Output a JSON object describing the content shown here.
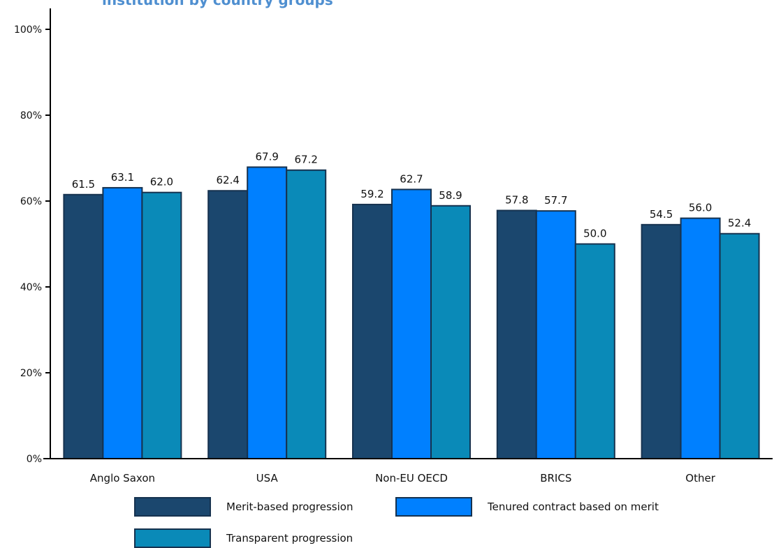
{
  "title": "institution by country groups",
  "chart_data": {
    "type": "bar",
    "categories": [
      "Anglo Saxon",
      "USA",
      "Non-EU OECD",
      "BRICS",
      "Other"
    ],
    "series": [
      {
        "name": "Merit-based progression",
        "values": [
          61.5,
          62.4,
          59.2,
          57.8,
          54.5
        ],
        "value_labels": [
          "61.5",
          "62.4",
          "59.2",
          "57.8",
          "54.5"
        ],
        "color": "#1b476e"
      },
      {
        "name": "Tenured contract based on merit",
        "values": [
          63.1,
          67.9,
          62.7,
          57.7,
          56.0
        ],
        "value_labels": [
          "63.1",
          "67.9",
          "62.7",
          "57.7",
          "56.0"
        ],
        "color": "#0080ff"
      },
      {
        "name": "Transparent progression",
        "values": [
          62.0,
          67.2,
          58.9,
          50.0,
          52.4
        ],
        "value_labels": [
          "62.0",
          "67.2",
          "58.9",
          "50.0",
          "52.4"
        ],
        "color": "#0a8ab8"
      }
    ],
    "ylim": [
      0,
      100
    ],
    "yticks": [
      0,
      20,
      40,
      60,
      80,
      100
    ],
    "ytick_labels": [
      "0%",
      "20%",
      "40%",
      "60%",
      "80%",
      "100%"
    ],
    "grid": false,
    "legend_position": "bottom",
    "xlabel": "",
    "ylabel": ""
  }
}
